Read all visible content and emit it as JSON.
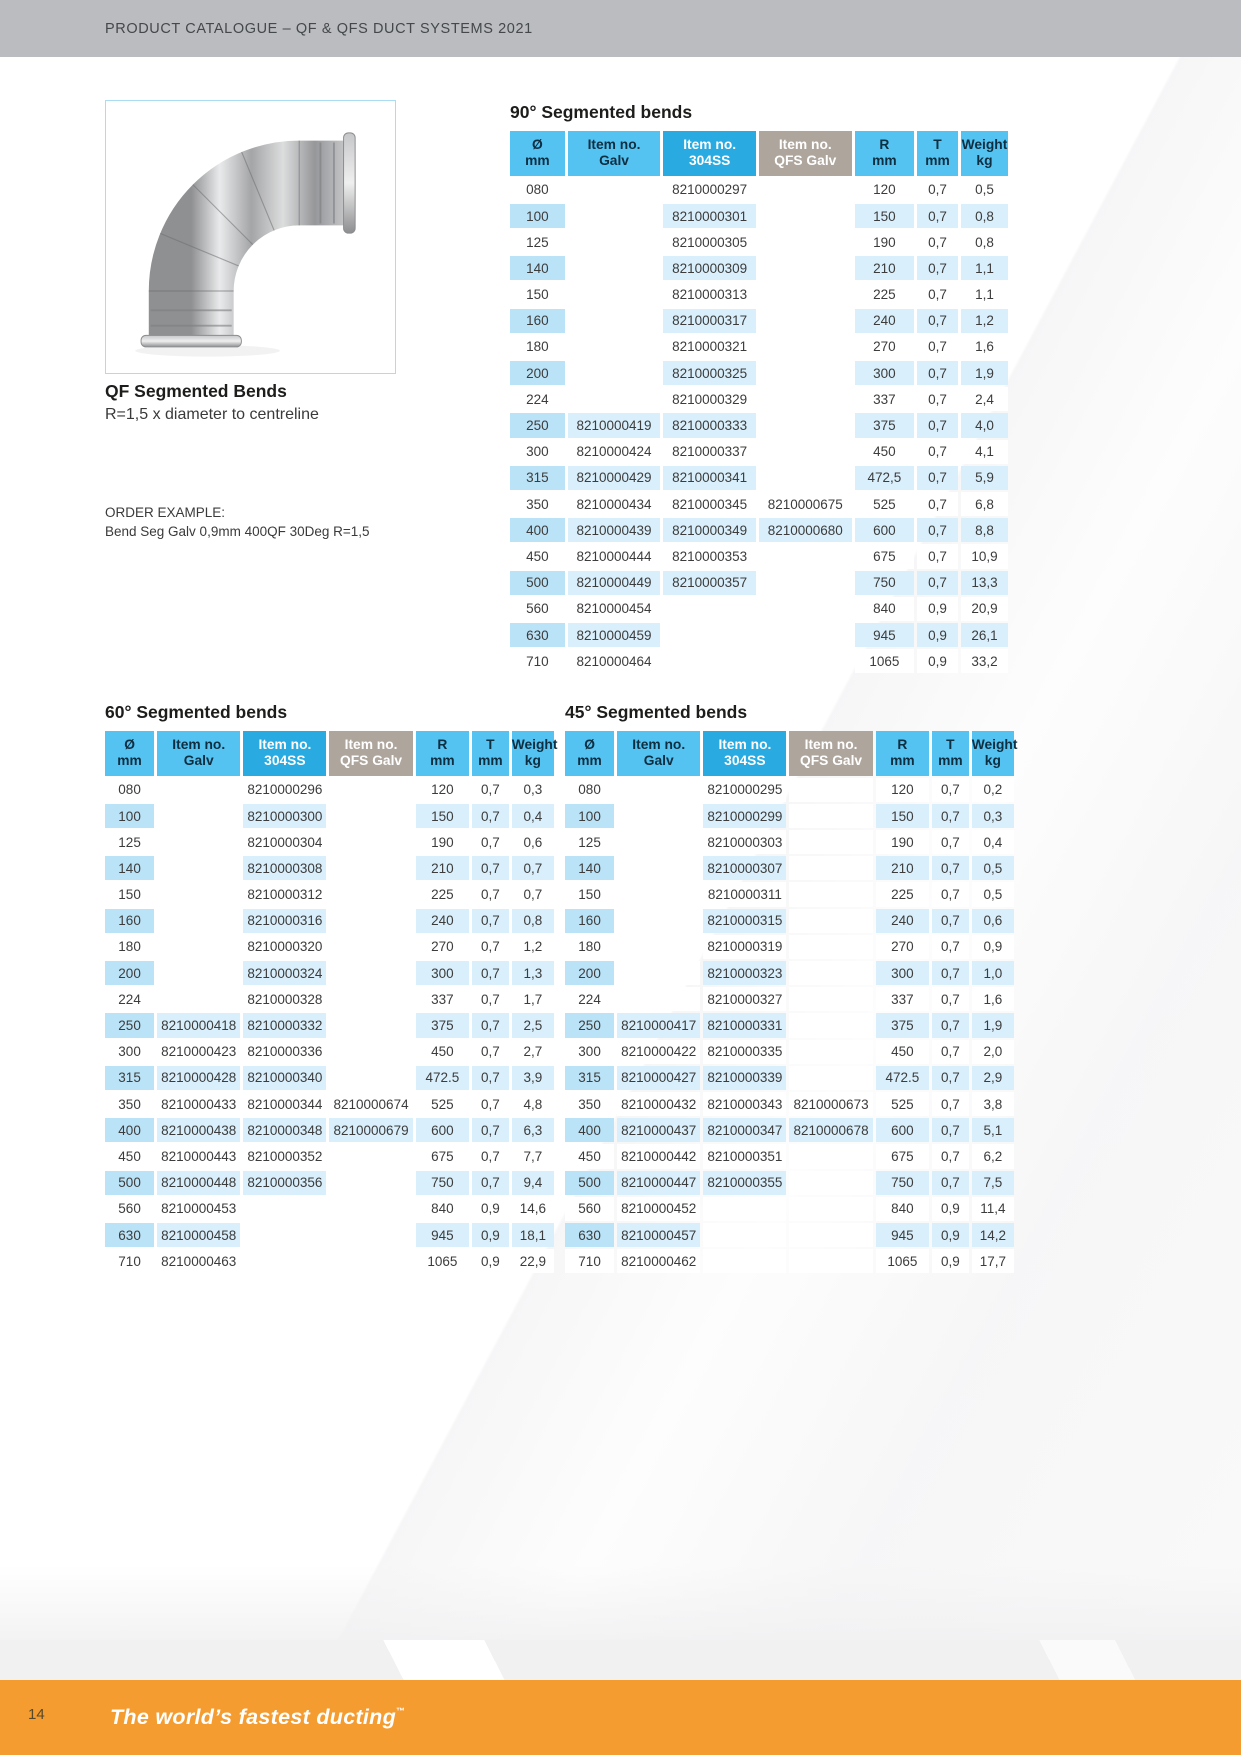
{
  "page": {
    "header_title": "PRODUCT CATALOGUE – QF & QFS DUCT SYSTEMS 2021",
    "page_number": "14",
    "footer_tagline": "The world’s fastest ducting",
    "trademark": "™"
  },
  "product": {
    "title": "QF Segmented Bends",
    "subtitle": "R=1,5 x diameter to centreline",
    "order_example_label": "ORDER EXAMPLE:",
    "order_example_text": "Bend Seg Galv 0,9mm 400QF 30Deg R=1,5"
  },
  "table_columns": [
    {
      "key": "diameter",
      "line1": "Ø",
      "line2": "mm",
      "variant": "light"
    },
    {
      "key": "item-galv",
      "line1": "Item no.",
      "line2": "Galv",
      "variant": "light"
    },
    {
      "key": "item-304ss",
      "line1": "Item no.",
      "line2": "304SS",
      "variant": "dark"
    },
    {
      "key": "item-qfs-galv",
      "line1": "Item no.",
      "line2": "QFS Galv",
      "variant": "gray"
    },
    {
      "key": "radius",
      "line1": "R",
      "line2": "mm",
      "variant": "light"
    },
    {
      "key": "thickness",
      "line1": "T",
      "line2": "mm",
      "variant": "light"
    },
    {
      "key": "weight",
      "line1": "Weight",
      "line2": "kg",
      "variant": "light"
    }
  ],
  "tables": [
    {
      "key": "bends-90",
      "title": "90° Segmented bends",
      "rows": [
        [
          "080",
          "",
          "8210000297",
          "",
          "120",
          "0,7",
          "0,5"
        ],
        [
          "100",
          "",
          "8210000301",
          "",
          "150",
          "0,7",
          "0,8"
        ],
        [
          "125",
          "",
          "8210000305",
          "",
          "190",
          "0,7",
          "0,8"
        ],
        [
          "140",
          "",
          "8210000309",
          "",
          "210",
          "0,7",
          "1,1"
        ],
        [
          "150",
          "",
          "8210000313",
          "",
          "225",
          "0,7",
          "1,1"
        ],
        [
          "160",
          "",
          "8210000317",
          "",
          "240",
          "0,7",
          "1,2"
        ],
        [
          "180",
          "",
          "8210000321",
          "",
          "270",
          "0,7",
          "1,6"
        ],
        [
          "200",
          "",
          "8210000325",
          "",
          "300",
          "0,7",
          "1,9"
        ],
        [
          "224",
          "",
          "8210000329",
          "",
          "337",
          "0,7",
          "2,4"
        ],
        [
          "250",
          "8210000419",
          "8210000333",
          "",
          "375",
          "0,7",
          "4,0"
        ],
        [
          "300",
          "8210000424",
          "8210000337",
          "",
          "450",
          "0,7",
          "4,1"
        ],
        [
          "315",
          "8210000429",
          "8210000341",
          "",
          "472,5",
          "0,7",
          "5,9"
        ],
        [
          "350",
          "8210000434",
          "8210000345",
          "8210000675",
          "525",
          "0,7",
          "6,8"
        ],
        [
          "400",
          "8210000439",
          "8210000349",
          "8210000680",
          "600",
          "0,7",
          "8,8"
        ],
        [
          "450",
          "8210000444",
          "8210000353",
          "",
          "675",
          "0,7",
          "10,9"
        ],
        [
          "500",
          "8210000449",
          "8210000357",
          "",
          "750",
          "0,7",
          "13,3"
        ],
        [
          "560",
          "8210000454",
          "",
          "",
          "840",
          "0,9",
          "20,9"
        ],
        [
          "630",
          "8210000459",
          "",
          "",
          "945",
          "0,9",
          "26,1"
        ],
        [
          "710",
          "8210000464",
          "",
          "",
          "1065",
          "0,9",
          "33,2"
        ]
      ]
    },
    {
      "key": "bends-60",
      "title": "60° Segmented bends",
      "rows": [
        [
          "080",
          "",
          "8210000296",
          "",
          "120",
          "0,7",
          "0,3"
        ],
        [
          "100",
          "",
          "8210000300",
          "",
          "150",
          "0,7",
          "0,4"
        ],
        [
          "125",
          "",
          "8210000304",
          "",
          "190",
          "0,7",
          "0,6"
        ],
        [
          "140",
          "",
          "8210000308",
          "",
          "210",
          "0,7",
          "0,7"
        ],
        [
          "150",
          "",
          "8210000312",
          "",
          "225",
          "0,7",
          "0,7"
        ],
        [
          "160",
          "",
          "8210000316",
          "",
          "240",
          "0,7",
          "0,8"
        ],
        [
          "180",
          "",
          "8210000320",
          "",
          "270",
          "0,7",
          "1,2"
        ],
        [
          "200",
          "",
          "8210000324",
          "",
          "300",
          "0,7",
          "1,3"
        ],
        [
          "224",
          "",
          "8210000328",
          "",
          "337",
          "0,7",
          "1,7"
        ],
        [
          "250",
          "8210000418",
          "8210000332",
          "",
          "375",
          "0,7",
          "2,5"
        ],
        [
          "300",
          "8210000423",
          "8210000336",
          "",
          "450",
          "0,7",
          "2,7"
        ],
        [
          "315",
          "8210000428",
          "8210000340",
          "",
          "472.5",
          "0,7",
          "3,9"
        ],
        [
          "350",
          "8210000433",
          "8210000344",
          "8210000674",
          "525",
          "0,7",
          "4,8"
        ],
        [
          "400",
          "8210000438",
          "8210000348",
          "8210000679",
          "600",
          "0,7",
          "6,3"
        ],
        [
          "450",
          "8210000443",
          "8210000352",
          "",
          "675",
          "0,7",
          "7,7"
        ],
        [
          "500",
          "8210000448",
          "8210000356",
          "",
          "750",
          "0,7",
          "9,4"
        ],
        [
          "560",
          "8210000453",
          "",
          "",
          "840",
          "0,9",
          "14,6"
        ],
        [
          "630",
          "8210000458",
          "",
          "",
          "945",
          "0,9",
          "18,1"
        ],
        [
          "710",
          "8210000463",
          "",
          "",
          "1065",
          "0,9",
          "22,9"
        ]
      ]
    },
    {
      "key": "bends-45",
      "title": "45° Segmented bends",
      "rows": [
        [
          "080",
          "",
          "8210000295",
          "",
          "120",
          "0,7",
          "0,2"
        ],
        [
          "100",
          "",
          "8210000299",
          "",
          "150",
          "0,7",
          "0,3"
        ],
        [
          "125",
          "",
          "8210000303",
          "",
          "190",
          "0,7",
          "0,4"
        ],
        [
          "140",
          "",
          "8210000307",
          "",
          "210",
          "0,7",
          "0,5"
        ],
        [
          "150",
          "",
          "8210000311",
          "",
          "225",
          "0,7",
          "0,5"
        ],
        [
          "160",
          "",
          "8210000315",
          "",
          "240",
          "0,7",
          "0,6"
        ],
        [
          "180",
          "",
          "8210000319",
          "",
          "270",
          "0,7",
          "0,9"
        ],
        [
          "200",
          "",
          "8210000323",
          "",
          "300",
          "0,7",
          "1,0"
        ],
        [
          "224",
          "",
          "8210000327",
          "",
          "337",
          "0,7",
          "1,6"
        ],
        [
          "250",
          "8210000417",
          "8210000331",
          "",
          "375",
          "0,7",
          "1,9"
        ],
        [
          "300",
          "8210000422",
          "8210000335",
          "",
          "450",
          "0,7",
          "2,0"
        ],
        [
          "315",
          "8210000427",
          "8210000339",
          "",
          "472.5",
          "0,7",
          "2,9"
        ],
        [
          "350",
          "8210000432",
          "8210000343",
          "8210000673",
          "525",
          "0,7",
          "3,8"
        ],
        [
          "400",
          "8210000437",
          "8210000347",
          "8210000678",
          "600",
          "0,7",
          "5,1"
        ],
        [
          "450",
          "8210000442",
          "8210000351",
          "",
          "675",
          "0,7",
          "6,2"
        ],
        [
          "500",
          "8210000447",
          "8210000355",
          "",
          "750",
          "0,7",
          "7,5"
        ],
        [
          "560",
          "8210000452",
          "",
          "",
          "840",
          "0,9",
          "11,4"
        ],
        [
          "630",
          "8210000457",
          "",
          "",
          "945",
          "0,9",
          "14,2"
        ],
        [
          "710",
          "8210000462",
          "",
          "",
          "1065",
          "0,9",
          "17,7"
        ]
      ]
    }
  ],
  "colors": {
    "accent_orange": "#F59C30",
    "header_bar_gray": "#BABCBF",
    "column_header_blue": "#55C3F1",
    "column_header_dark_blue": "#29ABE2",
    "column_header_warm_gray": "#AEA69D",
    "row_tint_strong": "#BBE3F7",
    "row_tint_light": "#D9EFFB"
  }
}
